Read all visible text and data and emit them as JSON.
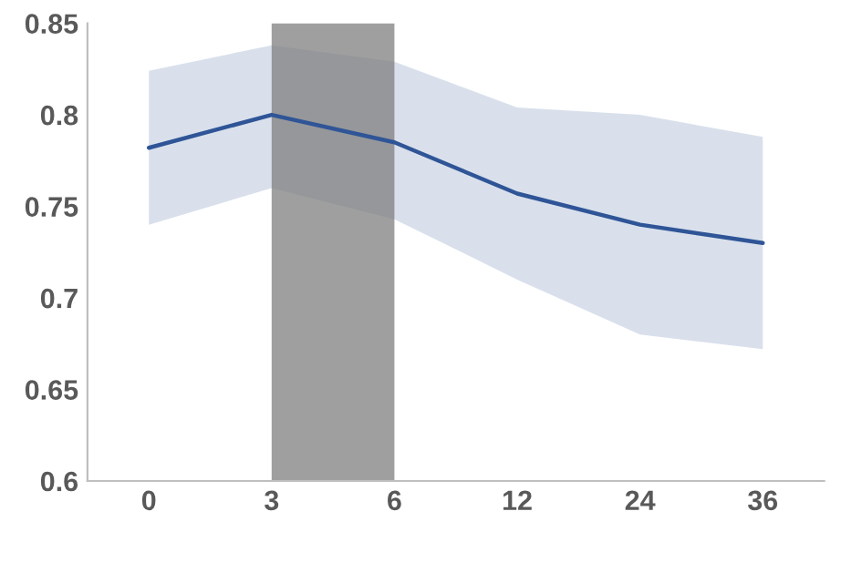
{
  "chart_data": {
    "type": "line",
    "categories": [
      "0",
      "3",
      "6",
      "12",
      "24",
      "36"
    ],
    "series": [
      {
        "color": "#2f5597",
        "values": [
          0.782,
          0.8,
          0.785,
          0.757,
          0.74,
          0.73
        ],
        "lower": [
          0.74,
          0.76,
          0.743,
          0.71,
          0.68,
          0.672
        ],
        "upper": [
          0.824,
          0.838,
          0.829,
          0.804,
          0.8,
          0.788
        ]
      }
    ],
    "bands": [
      {
        "axis": "x",
        "from": "3",
        "to": "6",
        "color": "#7f7f7f"
      }
    ],
    "ylim": [
      0.6,
      0.85
    ],
    "yticks": [
      0.6,
      0.65,
      0.7,
      0.75,
      0.8,
      0.85
    ],
    "grid": false,
    "legend": false,
    "marker": "none",
    "line_style": "solid"
  }
}
